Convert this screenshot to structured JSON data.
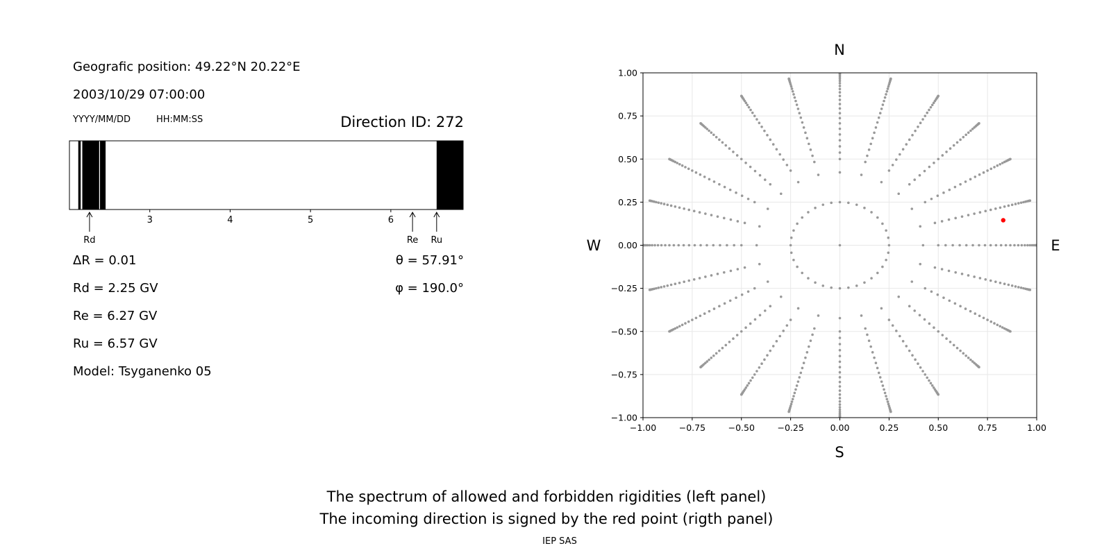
{
  "header": {
    "position": "Geografic position: 49.22°N 20.22°E",
    "datetime": "2003/10/29 07:00:00",
    "date_format": "YYYY/MM/DD",
    "time_format": "HH:MM:SS",
    "direction_id": "Direction ID: 272"
  },
  "params": {
    "delta_r": "ΔR = 0.01",
    "rd": "Rd = 2.25 GV",
    "re": "Re = 6.27 GV",
    "ru": "Ru = 6.57 GV",
    "model": "Model: Tsyganenko 05",
    "theta": "θ = 57.91°",
    "phi": "φ = 190.0°"
  },
  "compass": {
    "n": "N",
    "s": "S",
    "e": "E",
    "w": "W"
  },
  "caption": {
    "line1": "The spectrum of allowed and forbidden rigidities (left panel)",
    "line2": "The incoming direction is signed by the red point (rigth panel)",
    "credit": "IEP SAS"
  },
  "chart_data": [
    {
      "type": "bar",
      "name": "rigidity spectrum",
      "xlim": [
        2.0,
        6.9
      ],
      "ticks": [
        3,
        4,
        5,
        6
      ],
      "tick_labels": [
        "3",
        "4",
        "5",
        "6"
      ],
      "forbidden_bands": [
        [
          2.11,
          2.14
        ],
        [
          2.16,
          2.37
        ],
        [
          2.38,
          2.45
        ],
        [
          6.57,
          6.9
        ]
      ],
      "markers": [
        {
          "label": "Rd",
          "value": 2.25
        },
        {
          "label": "Re",
          "value": 6.27
        },
        {
          "label": "Ru",
          "value": 6.57
        }
      ],
      "colors": {
        "forbidden": "#000000",
        "allowed": "#ffffff"
      }
    },
    {
      "type": "scatter",
      "name": "incoming directions",
      "xlim": [
        -1.0,
        1.0
      ],
      "ylim": [
        -1.0,
        1.0
      ],
      "ticks": [
        -1.0,
        -0.75,
        -0.5,
        -0.25,
        0.0,
        0.25,
        0.5,
        0.75,
        1.0
      ],
      "tick_labels": [
        "−1.00",
        "−0.75",
        "−0.50",
        "−0.25",
        "0.00",
        "0.25",
        "0.50",
        "0.75",
        "1.00"
      ],
      "grid": true,
      "grid_points": {
        "radii_step_deg": 5,
        "max_zenith_deg": 90,
        "azimuth_step_deg": 15,
        "inner_ring_radius": 0.25
      },
      "highlight": {
        "x": 0.83,
        "y": 0.145,
        "color": "#ff0000"
      },
      "colors": {
        "points": "#999999",
        "highlight": "#ff0000"
      }
    }
  ]
}
